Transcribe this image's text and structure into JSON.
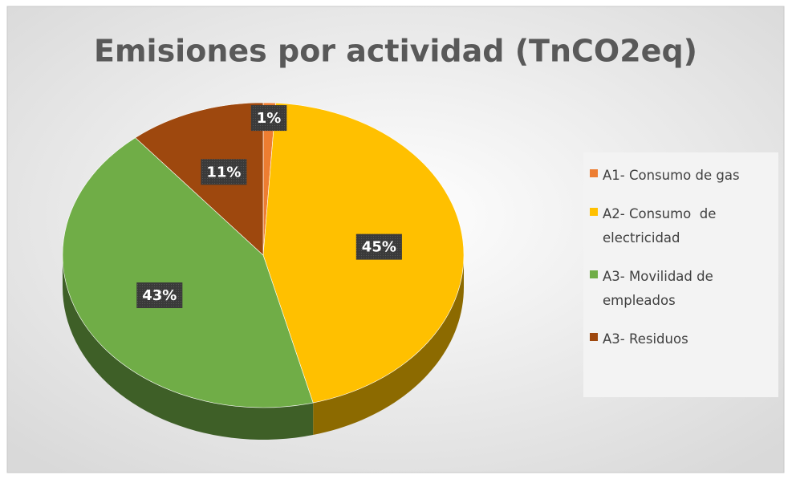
{
  "chart_data": {
    "type": "pie",
    "title": "Emisiones por actividad (TnCO2eq)",
    "categories": [
      "A1- Consumo de gas",
      "A2- Consumo  de electricidad",
      "A3- Movilidad de empleados",
      "A3- Residuos"
    ],
    "values": [
      1,
      45,
      43,
      11
    ],
    "value_labels": [
      "1%",
      "45%",
      "43%",
      "11%"
    ],
    "colors": [
      "#ed7d31",
      "#ffc000",
      "#70ad47",
      "#9e480e"
    ],
    "legend": "right"
  }
}
